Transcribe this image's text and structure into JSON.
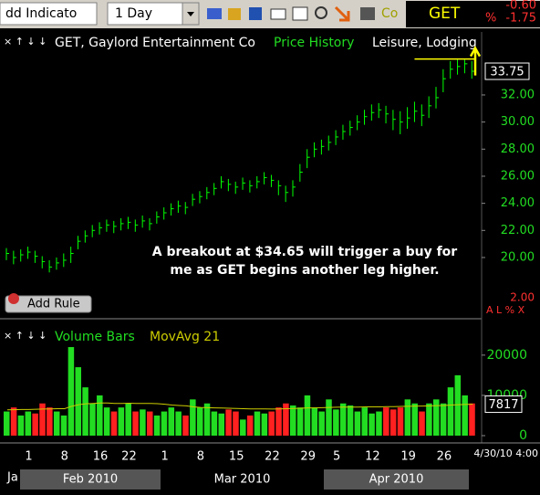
{
  "toolbar": {
    "indicator": "dd Indicato",
    "period": "1 Day",
    "compare": "Co",
    "symbol": "GET",
    "change": "-0.60",
    "pct_sign": "%",
    "pct_change": "-1.75"
  },
  "chart_data": [
    {
      "type": "ohlc",
      "title": "GET, Gaylord Entertainment Co",
      "subtitle": "Price History",
      "sector": "Leisure, Lodging",
      "color": "#00ff00",
      "categories": [
        null,
        null,
        null,
        "1",
        null,
        null,
        null,
        null,
        "8",
        null,
        null,
        null,
        null,
        "16",
        null,
        null,
        null,
        "22",
        null,
        null,
        null,
        null,
        "1",
        null,
        null,
        null,
        null,
        "8",
        null,
        null,
        null,
        null,
        "15",
        null,
        null,
        null,
        null,
        "22",
        null,
        null,
        null,
        null,
        "29",
        null,
        null,
        null,
        "5",
        null,
        null,
        null,
        null,
        "12",
        null,
        null,
        null,
        null,
        "19",
        null,
        null,
        null,
        null,
        "26",
        null,
        null,
        null,
        null
      ],
      "high": [
        20.7,
        20.5,
        20.6,
        20.8,
        20.5,
        20.1,
        19.8,
        20.0,
        20.3,
        20.8,
        21.6,
        22.0,
        22.4,
        22.6,
        22.8,
        22.7,
        22.9,
        23.0,
        22.8,
        23.1,
        22.9,
        23.4,
        23.7,
        24.0,
        24.2,
        24.1,
        24.7,
        24.9,
        25.2,
        25.5,
        26.0,
        25.8,
        25.6,
        25.9,
        25.7,
        26.0,
        26.3,
        26.1,
        25.7,
        25.3,
        25.7,
        26.9,
        28.0,
        28.5,
        28.7,
        29.0,
        29.4,
        29.8,
        30.1,
        30.5,
        30.9,
        31.3,
        31.4,
        31.2,
        30.9,
        30.8,
        31.1,
        31.5,
        31.3,
        31.9,
        32.6,
        33.9,
        34.5,
        34.6,
        34.6,
        34.5
      ],
      "low": [
        19.8,
        19.5,
        19.7,
        19.9,
        19.6,
        19.2,
        18.9,
        19.1,
        19.3,
        19.6,
        20.6,
        21.1,
        21.5,
        21.7,
        21.9,
        21.8,
        22.0,
        22.1,
        21.9,
        22.2,
        22.0,
        22.5,
        22.8,
        23.1,
        23.3,
        23.2,
        23.8,
        24.0,
        24.3,
        24.6,
        25.1,
        24.9,
        24.7,
        25.0,
        24.8,
        25.1,
        25.4,
        25.2,
        24.6,
        24.1,
        24.5,
        25.6,
        26.6,
        27.4,
        27.6,
        27.9,
        28.3,
        28.7,
        29.0,
        29.4,
        29.8,
        30.1,
        30.3,
        29.9,
        29.4,
        29.1,
        29.5,
        30.0,
        29.7,
        30.3,
        31.0,
        32.2,
        33.2,
        33.5,
        33.6,
        33.2
      ],
      "close": [
        20.3,
        20.0,
        20.2,
        20.4,
        20.1,
        19.7,
        19.3,
        19.6,
        19.8,
        20.3,
        21.2,
        21.6,
        22.0,
        22.2,
        22.4,
        22.3,
        22.5,
        22.6,
        22.4,
        22.7,
        22.5,
        23.0,
        23.3,
        23.6,
        23.8,
        23.7,
        24.3,
        24.5,
        24.8,
        25.1,
        25.6,
        25.4,
        25.2,
        25.5,
        25.3,
        25.6,
        25.9,
        25.7,
        25.3,
        24.8,
        25.2,
        26.3,
        27.4,
        28.0,
        28.2,
        28.5,
        28.9,
        29.3,
        29.6,
        30.0,
        30.4,
        30.7,
        30.9,
        30.6,
        30.2,
        30.0,
        30.3,
        30.8,
        30.5,
        31.2,
        31.8,
        33.2,
        33.9,
        34.1,
        34.3,
        33.75
      ],
      "ylim": [
        15.75,
        36.65
      ],
      "yticks": [
        {
          "value": 20,
          "label": "20.00"
        },
        {
          "value": 22,
          "label": "22.00"
        },
        {
          "value": 24,
          "label": "24.00"
        },
        {
          "value": 26,
          "label": "26.00"
        },
        {
          "value": 28,
          "label": "28.00"
        },
        {
          "value": 30,
          "label": "30.00"
        },
        {
          "value": 32,
          "label": "32.00"
        }
      ],
      "resistance": 34.65,
      "resistance_color": "#ffff00",
      "annotation": [
        "A breakout at $34.65 will trigger a buy for",
        "me as GET begins another leg higher."
      ],
      "scale_note": "2.00",
      "controls": "A L % X",
      "button": "Add Rule"
    },
    {
      "type": "bar",
      "categories": [
        null,
        null,
        null,
        "1",
        null,
        null,
        null,
        null,
        "8",
        null,
        null,
        null,
        null,
        "16",
        null,
        null,
        null,
        "22",
        null,
        null,
        null,
        null,
        "1",
        null,
        null,
        null,
        null,
        "8",
        null,
        null,
        null,
        null,
        "15",
        null,
        null,
        null,
        null,
        "22",
        null,
        null,
        null,
        null,
        "29",
        null,
        null,
        null,
        "5",
        null,
        null,
        null,
        null,
        "12",
        null,
        null,
        null,
        null,
        "19",
        null,
        null,
        null,
        null,
        "26",
        null,
        null,
        null,
        null
      ],
      "series": [
        {
          "name": "Volume Bars",
          "up_color": "#22dd22",
          "down_color": "#ff2020",
          "values": [
            6000,
            7000,
            5000,
            6000,
            5500,
            8000,
            7000,
            6000,
            5000,
            22000,
            17000,
            12000,
            8000,
            10000,
            7000,
            6000,
            7000,
            8000,
            6000,
            6500,
            6000,
            5000,
            6000,
            7000,
            6000,
            5000,
            9000,
            7000,
            8000,
            6000,
            5500,
            6500,
            6000,
            4000,
            5000,
            6000,
            5500,
            6000,
            7000,
            8000,
            7500,
            7000,
            10000,
            7000,
            6000,
            9000,
            6500,
            8000,
            7500,
            6000,
            7000,
            5500,
            6000,
            7000,
            6500,
            7000,
            9000,
            8000,
            6000,
            8000,
            9000,
            8000,
            12000,
            15000,
            10000,
            8000
          ]
        },
        {
          "name": "MovAvg 21",
          "color": "#cccc00",
          "values": [
            6400,
            6450,
            6500,
            6500,
            6550,
            6600,
            6650,
            6700,
            6700,
            7300,
            7700,
            7900,
            8000,
            8100,
            8100,
            8000,
            8000,
            8050,
            8000,
            8000,
            8000,
            7950,
            7800,
            7600,
            7500,
            7400,
            7150,
            7000,
            6950,
            6900,
            6850,
            6800,
            6750,
            6700,
            6650,
            6650,
            6650,
            6600,
            6650,
            6700,
            6750,
            6800,
            6900,
            6900,
            6950,
            7000,
            7050,
            7100,
            7100,
            7100,
            7150,
            7150,
            7150,
            7200,
            7200,
            7250,
            7300,
            7350,
            7350,
            7400,
            7450,
            7500,
            7600,
            7700,
            7750,
            7817
          ]
        }
      ],
      "ylim": [
        0,
        27000
      ],
      "yticks": [
        0,
        10000,
        20000
      ],
      "x_start_label": "Ja",
      "last_date_label": "4/30/10 4:00",
      "months": [
        "Feb 2010",
        "Mar 2010",
        "Apr 2010"
      ]
    }
  ]
}
